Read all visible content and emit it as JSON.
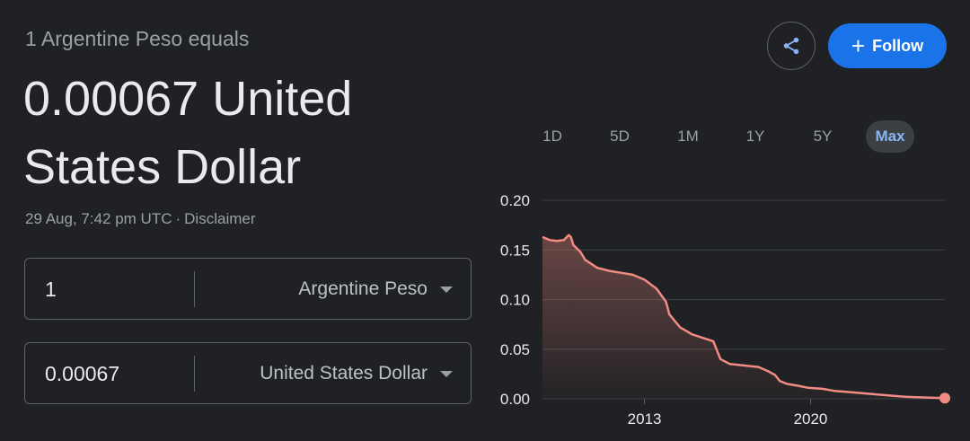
{
  "header": {
    "subtitle": "1 Argentine Peso equals",
    "value": "0.00067 United States Dollar",
    "timestamp": "29 Aug, 7:42 pm UTC",
    "separator": "·",
    "disclaimer": "Disclaimer"
  },
  "converter": {
    "from": {
      "amount": "1",
      "currency": "Argentine Peso"
    },
    "to": {
      "amount": "0.00067",
      "currency": "United States Dollar"
    }
  },
  "actions": {
    "share_icon": "share-icon",
    "follow_label": "Follow",
    "follow_icon": "+"
  },
  "ranges": {
    "items": [
      "1D",
      "5D",
      "1M",
      "1Y",
      "5Y",
      "Max"
    ],
    "selected": "Max"
  },
  "colors": {
    "line": "#f28b82",
    "accent": "#1a73e8",
    "active_range": "#8ab4f8"
  },
  "chart_data": {
    "type": "area",
    "y_ticks": [
      "0.20",
      "0.15",
      "0.10",
      "0.05",
      "0.00"
    ],
    "x_ticks": [
      "2013",
      "2020"
    ],
    "ylim": [
      0,
      0.2
    ],
    "xlim": [
      2008.7,
      2025.66
    ],
    "grid": true,
    "series": [
      {
        "x": [
          2008.7,
          2009.0,
          2009.3,
          2009.6,
          2009.8,
          2009.9,
          2010.0,
          2010.3,
          2010.5,
          2011.0,
          2011.5,
          2012.0,
          2012.5,
          2013.0,
          2013.5,
          2013.9,
          2014.05,
          2014.5,
          2015.0,
          2015.5,
          2015.9,
          2015.95,
          2016.2,
          2016.6,
          2017.0,
          2017.4,
          2017.8,
          2018.2,
          2018.5,
          2018.7,
          2019.0,
          2019.5,
          2019.9,
          2020.5,
          2021.0,
          2021.5,
          2022.0,
          2022.5,
          2023.0,
          2023.5,
          2024.0,
          2024.5,
          2025.0,
          2025.66
        ],
        "y": [
          0.163,
          0.16,
          0.159,
          0.16,
          0.165,
          0.163,
          0.155,
          0.148,
          0.14,
          0.132,
          0.129,
          0.127,
          0.125,
          0.12,
          0.111,
          0.098,
          0.085,
          0.072,
          0.065,
          0.061,
          0.058,
          0.055,
          0.04,
          0.035,
          0.034,
          0.033,
          0.032,
          0.028,
          0.024,
          0.018,
          0.015,
          0.013,
          0.011,
          0.01,
          0.008,
          0.007,
          0.006,
          0.005,
          0.004,
          0.003,
          0.002,
          0.0015,
          0.0011,
          0.00067
        ]
      }
    ]
  }
}
